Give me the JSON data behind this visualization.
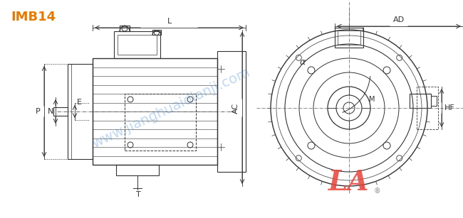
{
  "title": "IMB14",
  "title_color": "#E87A00",
  "line_color": "#333333",
  "dim_color": "#333333",
  "watermark_color": "#4A90D9",
  "watermark_text": "www.jianghuaidianji.com",
  "logo_text": "LA",
  "logo_color": "#E8433A",
  "registered_color": "#888888",
  "background": "#FFFFFF",
  "labels": {
    "L": "L",
    "E": "E",
    "N": "N",
    "P": "P",
    "T": "T",
    "AC": "AC",
    "AD": "AD",
    "alpha": "α",
    "HF": "HF",
    "M": "M"
  }
}
